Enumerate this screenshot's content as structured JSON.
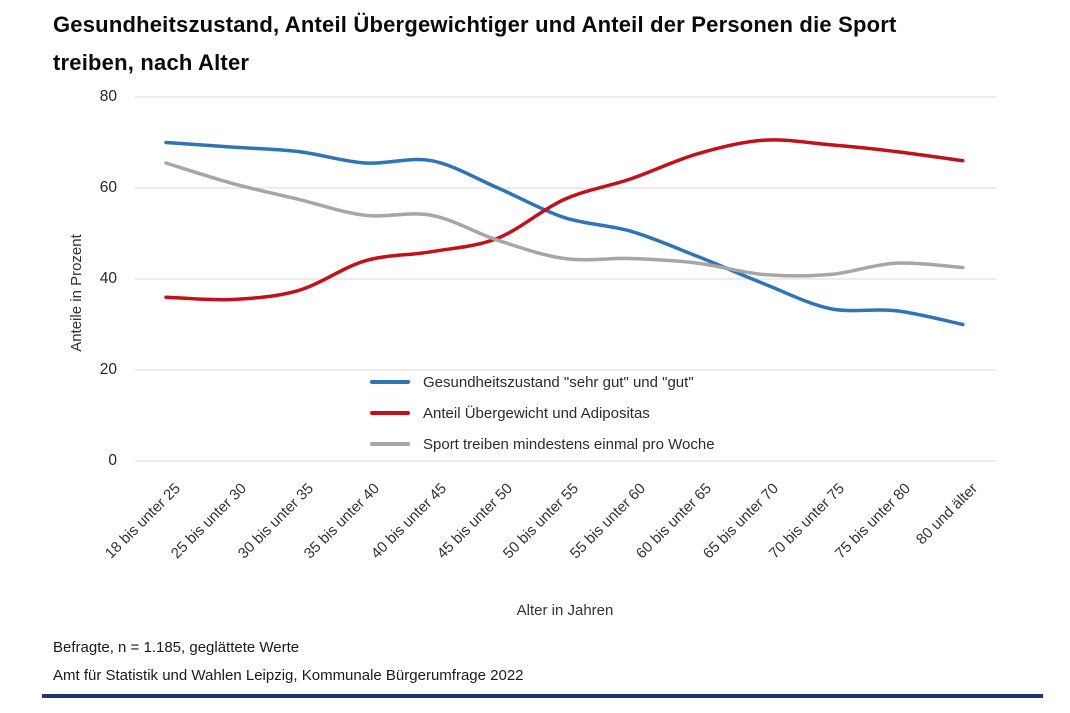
{
  "page": {
    "title_line1": "Gesundheitszustand, Anteil Übergewichtiger und Anteil der Personen die Sport",
    "title_line2": "treiben, nach Alter",
    "footnote1": "Befragte, n = 1.185, geglättete Werte",
    "footnote2": "Amt für Statistik und Wahlen Leipzig, Kommunale Bürgerumfrage 2022",
    "divider_color": "#1e3278"
  },
  "chart_data": {
    "type": "line",
    "title": "Gesundheitszustand, Anteil Übergewichtiger und Anteil der Personen die Sport treiben, nach Alter",
    "xlabel": "Alter in Jahren",
    "ylabel": "Anteile in Prozent",
    "ylim": [
      0,
      80
    ],
    "yticks": [
      0,
      20,
      40,
      60,
      80
    ],
    "grid": "horizontal-only",
    "grid_color": "#d8d8d8",
    "legend_position": "inside-bottom-center",
    "smoothed": true,
    "categories": [
      "18 bis unter 25",
      "25 bis unter 30",
      "30 bis unter 35",
      "35 bis unter 40",
      "40 bis unter 45",
      "45 bis unter 50",
      "50 bis unter 55",
      "55 bis unter 60",
      "60 bis unter 65",
      "65 bis unter 70",
      "70 bis unter 75",
      "75 bis unter 80",
      "80 und älter"
    ],
    "series": [
      {
        "name": "Gesundheitszustand \"sehr gut\" und \"gut\"",
        "color": "#2E75B6",
        "values": [
          70,
          69,
          68,
          65.5,
          66,
          60,
          53.5,
          50.5,
          45,
          39,
          33.5,
          33,
          30
        ]
      },
      {
        "name": "Anteil Übergewicht und Adipositas",
        "color": "#C1121C",
        "values": [
          36,
          35.5,
          37.5,
          44,
          46,
          49,
          57.5,
          62,
          67.5,
          70.5,
          69.5,
          68,
          66
        ]
      },
      {
        "name": "Sport treiben mindestens einmal pro Woche",
        "color": "#A6A6A6",
        "values": [
          65.5,
          61,
          57.5,
          54,
          54,
          48.5,
          44.5,
          44.5,
          43.5,
          41,
          41,
          43.5,
          42.5
        ]
      }
    ]
  }
}
